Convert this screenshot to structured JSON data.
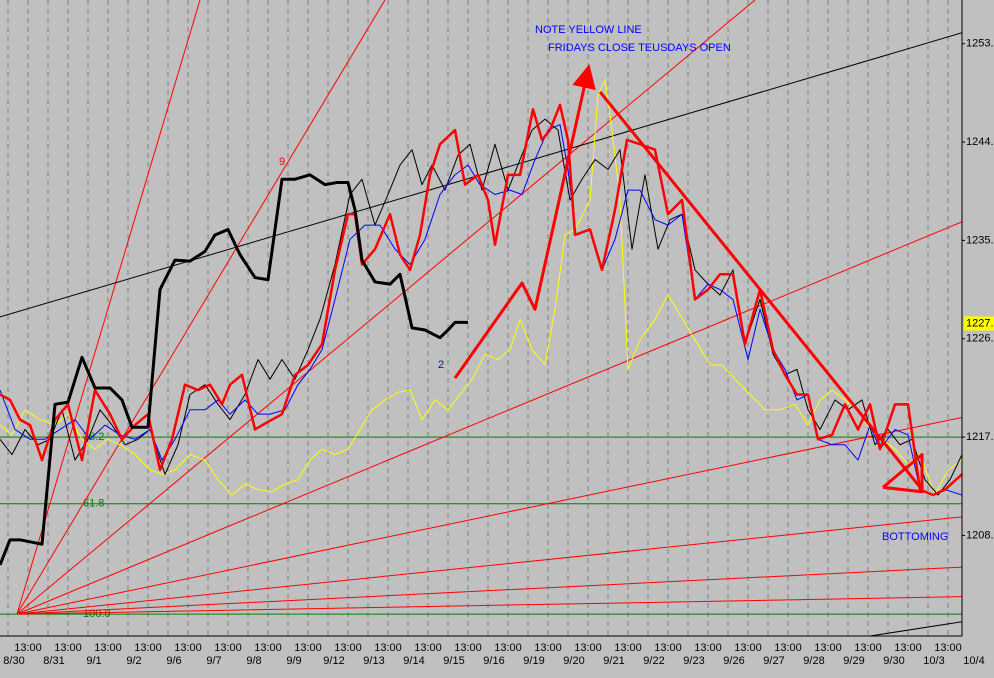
{
  "chart_data": {
    "type": "line",
    "xlim": [
      -0.4,
      47.7
    ],
    "ylim": [
      1198.8,
      1257.0
    ],
    "grid": true,
    "yticks": [
      {
        "value": 1208,
        "label": "1208."
      },
      {
        "value": 1217,
        "label": "1217."
      },
      {
        "value": 1226,
        "label": "1226."
      },
      {
        "value": 1235,
        "label": "1235."
      },
      {
        "value": 1244,
        "label": "1244."
      },
      {
        "value": 1253,
        "label": "1253."
      }
    ],
    "last_price": {
      "value": 1227.4,
      "label": "1227.",
      "color": "#ffff00"
    },
    "xticks": [
      {
        "value": 1,
        "label": "13:00"
      },
      {
        "value": 3,
        "label": "13:00"
      },
      {
        "value": 5,
        "label": "13:00"
      },
      {
        "value": 7,
        "label": "13:00"
      },
      {
        "value": 9,
        "label": "13:00"
      },
      {
        "value": 11,
        "label": "13:00"
      },
      {
        "value": 13,
        "label": "13:00"
      },
      {
        "value": 15,
        "label": "13:00"
      },
      {
        "value": 17,
        "label": "13:00"
      },
      {
        "value": 19,
        "label": "13:00"
      },
      {
        "value": 21,
        "label": "13:00"
      },
      {
        "value": 23,
        "label": "13:00"
      },
      {
        "value": 25,
        "label": "13:00"
      },
      {
        "value": 27,
        "label": "13:00"
      },
      {
        "value": 29,
        "label": "13:00"
      },
      {
        "value": 31,
        "label": "13:00"
      },
      {
        "value": 33,
        "label": "13:00"
      },
      {
        "value": 35,
        "label": "13:00"
      },
      {
        "value": 37,
        "label": "13:00"
      },
      {
        "value": 39,
        "label": "13:00"
      },
      {
        "value": 41,
        "label": "13:00"
      },
      {
        "value": 43,
        "label": "13:00"
      },
      {
        "value": 45,
        "label": "13:00"
      },
      {
        "value": 47,
        "label": "13:00"
      }
    ],
    "date_ticks": [
      {
        "value": 0,
        "label": "8/30"
      },
      {
        "value": 2,
        "label": "8/31"
      },
      {
        "value": 4,
        "label": "9/1"
      },
      {
        "value": 6,
        "label": "9/2"
      },
      {
        "value": 8,
        "label": "9/6"
      },
      {
        "value": 10,
        "label": "9/7"
      },
      {
        "value": 12,
        "label": "9/8"
      },
      {
        "value": 14,
        "label": "9/9"
      },
      {
        "value": 16,
        "label": "9/12"
      },
      {
        "value": 18,
        "label": "9/13"
      },
      {
        "value": 20,
        "label": "9/14"
      },
      {
        "value": 22,
        "label": "9/15"
      },
      {
        "value": 24,
        "label": "9/16"
      },
      {
        "value": 26,
        "label": "9/19"
      },
      {
        "value": 28,
        "label": "9/20"
      },
      {
        "value": 30,
        "label": "9/21"
      },
      {
        "value": 32,
        "label": "9/22"
      },
      {
        "value": 34,
        "label": "9/23"
      },
      {
        "value": 36,
        "label": "9/26"
      },
      {
        "value": 38,
        "label": "9/27"
      },
      {
        "value": 40,
        "label": "9/28"
      },
      {
        "value": 42,
        "label": "9/29"
      },
      {
        "value": 44,
        "label": "9/30"
      },
      {
        "value": 46,
        "label": "10/3"
      },
      {
        "value": 48,
        "label": "10/4"
      }
    ],
    "levels": [
      {
        "label": "38.2",
        "value": 1217.0,
        "color": "#008000"
      },
      {
        "label": "61.8",
        "value": 1210.9,
        "color": "#008000"
      },
      {
        "label": "100.0",
        "value": 1200.8,
        "color": "#008000"
      }
    ],
    "drawings": [
      {
        "color": "#ff0000",
        "width": 1,
        "x": [
          0.45,
          9.6
        ],
        "y": [
          1200.8,
          1257.0
        ]
      },
      {
        "color": "#ff0000",
        "width": 1,
        "x": [
          0.45,
          18.85
        ],
        "y": [
          1200.8,
          1257.0
        ]
      },
      {
        "color": "#ff0000",
        "width": 1,
        "x": [
          0.45,
          37.35
        ],
        "y": [
          1200.8,
          1257.0
        ]
      },
      {
        "color": "#ff0000",
        "width": 1,
        "x": [
          0.45,
          47.7
        ],
        "y": [
          1200.8,
          1236.7
        ]
      },
      {
        "color": "#ff0000",
        "width": 1,
        "x": [
          0.45,
          47.7
        ],
        "y": [
          1200.8,
          1218.8
        ]
      },
      {
        "color": "#ff0000",
        "width": 1,
        "x": [
          0.45,
          47.7
        ],
        "y": [
          1200.8,
          1209.7
        ]
      },
      {
        "color": "#ff0000",
        "width": 1,
        "x": [
          0.45,
          47.7
        ],
        "y": [
          1200.8,
          1205.1
        ]
      },
      {
        "color": "#ff0000",
        "width": 1,
        "x": [
          0.45,
          47.7
        ],
        "y": [
          1200.8,
          1202.4
        ]
      },
      {
        "color": "#000000",
        "width": 1,
        "x": [
          -0.4,
          47.7
        ],
        "y": [
          1228.0,
          1254.0
        ]
      },
      {
        "color": "#000000",
        "width": 1,
        "x": [
          43.1,
          47.7
        ],
        "y": [
          1198.8,
          1200.1
        ]
      }
    ],
    "series": [
      {
        "color": "#ffff00",
        "width": 1,
        "x": [
          -0.4,
          0.2,
          0.85,
          1.6,
          2.35,
          3,
          3.7,
          4.35,
          5,
          5.6,
          6.35,
          7.1,
          7.7,
          8.35,
          9.1,
          9.85,
          10.5,
          11.2,
          11.85,
          12.5,
          13.2,
          13.85,
          14.5,
          15.1,
          15.7,
          16.35,
          17,
          17.6,
          18.2,
          18.85,
          19.5,
          20.1,
          20.7,
          21.35,
          22,
          22.6,
          23.2,
          23.85,
          24.5,
          25.1,
          25.6,
          26.2,
          26.85,
          27.35,
          27.85,
          28.35,
          29.1,
          29.5,
          29.85,
          30.2,
          30.6,
          31,
          31.6,
          32.35,
          33,
          33.6,
          34.35,
          35.1,
          35.7,
          36.35,
          37.1,
          37.85,
          38.6,
          39.35,
          40,
          40.6,
          41.2,
          41.85,
          42.5,
          43.1,
          43.7,
          44.35,
          45,
          45.6,
          46.35,
          47,
          47.7
        ],
        "values": [
          1218.1,
          1217.2,
          1219.5,
          1218.6,
          1218.1,
          1219.1,
          1216.8,
          1215.9,
          1216.8,
          1216.3,
          1215.4,
          1214.0,
          1213.6,
          1214.0,
          1215.4,
          1214.9,
          1213.1,
          1211.7,
          1212.7,
          1212.2,
          1212.0,
          1212.7,
          1213.1,
          1214.9,
          1215.9,
          1215.4,
          1215.9,
          1217.7,
          1219.5,
          1220.4,
          1221.1,
          1221.3,
          1218.6,
          1220.4,
          1219.5,
          1220.9,
          1222.3,
          1224.6,
          1224.1,
          1225.0,
          1227.8,
          1225.0,
          1223.6,
          1228.7,
          1235.5,
          1236.0,
          1238.7,
          1248.3,
          1249.7,
          1245.1,
          1238.7,
          1223.2,
          1225.9,
          1227.8,
          1230.0,
          1228.2,
          1225.9,
          1223.6,
          1223.6,
          1222.3,
          1220.9,
          1219.5,
          1219.5,
          1220.0,
          1218.1,
          1220.4,
          1221.3,
          1220.4,
          1219.5,
          1217.7,
          1216.8,
          1215.9,
          1214.5,
          1215.4,
          1211.7,
          1214.0,
          1214.9
        ]
      },
      {
        "color": "#000000",
        "width": 1,
        "x": [
          -0.4,
          0.2,
          0.85,
          1.5,
          2.1,
          2.7,
          3.35,
          4,
          4.6,
          5.2,
          5.85,
          6.5,
          7.1,
          7.85,
          8.5,
          9.1,
          9.85,
          10.5,
          11.1,
          11.85,
          12.5,
          13.1,
          13.7,
          14.35,
          15,
          15.6,
          16.35,
          17.1,
          17.7,
          18.35,
          19,
          19.6,
          20.2,
          20.7,
          21.2,
          21.85,
          22.5,
          23.1,
          23.7,
          24.35,
          25,
          25.6,
          26.2,
          26.85,
          27.5,
          28.1,
          28.7,
          29.35,
          30,
          30.6,
          31.2,
          31.85,
          32.5,
          33.1,
          33.7,
          34.35,
          35,
          35.6,
          36.25,
          36.85,
          37.6,
          38.25,
          38.85,
          39.45,
          40,
          40.6,
          41.35,
          42,
          42.7,
          43.35,
          44,
          44.6,
          45.2,
          45.85,
          46.5,
          47.1,
          47.7
        ],
        "values": [
          1216.8,
          1215.4,
          1217.7,
          1216.3,
          1216.8,
          1219.5,
          1214.9,
          1216.8,
          1219.5,
          1218.1,
          1216.3,
          1216.8,
          1217.7,
          1213.6,
          1216.3,
          1220.9,
          1221.8,
          1220.0,
          1218.6,
          1220.9,
          1224.1,
          1222.3,
          1224.1,
          1222.3,
          1225.0,
          1227.8,
          1232.8,
          1239.2,
          1240.6,
          1236.4,
          1239.2,
          1241.9,
          1243.3,
          1240.1,
          1241.9,
          1239.6,
          1242.8,
          1243.8,
          1239.6,
          1243.8,
          1239.6,
          1242.4,
          1245.1,
          1246.1,
          1245.1,
          1238.7,
          1240.6,
          1242.4,
          1241.5,
          1243.3,
          1234.2,
          1241.0,
          1234.2,
          1236.9,
          1237.4,
          1232.3,
          1231.0,
          1230.0,
          1232.3,
          1225.5,
          1229.6,
          1224.6,
          1222.7,
          1223.2,
          1219.5,
          1217.7,
          1220.4,
          1219.5,
          1220.4,
          1216.3,
          1217.7,
          1216.3,
          1216.8,
          1213.1,
          1211.7,
          1213.1,
          1215.4
        ]
      },
      {
        "color": "#0000ff",
        "width": 1,
        "x": [
          -0.4,
          0.35,
          1.1,
          1.85,
          2.6,
          3.35,
          4.1,
          4.85,
          5.6,
          6.35,
          7.1,
          7.7,
          8.35,
          9.1,
          9.85,
          10.5,
          11.1,
          11.85,
          12.5,
          13.1,
          13.85,
          14.5,
          15.1,
          15.7,
          16.35,
          17.1,
          17.85,
          18.6,
          19.35,
          20.1,
          20.85,
          21.6,
          22.35,
          23,
          23.6,
          24.35,
          25.1,
          25.7,
          26.35,
          27,
          27.6,
          28,
          28.4,
          29.1,
          29.7,
          30.35,
          31,
          31.6,
          32.35,
          33,
          33.7,
          34.35,
          35,
          35.6,
          36.25,
          37,
          37.6,
          38.25,
          38.85,
          39.45,
          40,
          40.5,
          41.2,
          41.85,
          42.5,
          43.1,
          43.6,
          44.35,
          45,
          45.6,
          46.25,
          46.85,
          47.7
        ],
        "values": [
          1221.3,
          1217.7,
          1216.8,
          1216.8,
          1217.7,
          1218.6,
          1216.8,
          1218.1,
          1217.2,
          1216.8,
          1217.7,
          1214.9,
          1216.8,
          1219.5,
          1219.5,
          1220.4,
          1219.1,
          1220.4,
          1219.1,
          1219.1,
          1219.5,
          1221.8,
          1223.2,
          1225.0,
          1229.6,
          1235.1,
          1236.4,
          1236.4,
          1234.2,
          1232.8,
          1235.1,
          1239.2,
          1241.0,
          1241.9,
          1240.1,
          1239.2,
          1239.6,
          1239.2,
          1242.4,
          1245.1,
          1245.6,
          1241.5,
          1235.5,
          1236.0,
          1232.3,
          1235.1,
          1239.6,
          1239.6,
          1236.9,
          1236.4,
          1237.4,
          1229.6,
          1231.0,
          1230.5,
          1229.6,
          1224.1,
          1228.7,
          1225.0,
          1223.2,
          1220.4,
          1220.9,
          1216.8,
          1216.3,
          1216.3,
          1214.9,
          1218.1,
          1215.9,
          1217.7,
          1217.2,
          1212.2,
          1211.7,
          1212.2,
          1211.7
        ]
      },
      {
        "color": "#ff0000",
        "width": 2.5,
        "x": [
          -0.4,
          0.1,
          0.6,
          1.1,
          1.7,
          2.35,
          3,
          3.7,
          4.35,
          5.1,
          5.7,
          6.35,
          7,
          7.6,
          8.2,
          8.85,
          9.5,
          10.1,
          10.7,
          11.1,
          11.7,
          12.35,
          13,
          13.7,
          14.35,
          15,
          15.7,
          16.35,
          17,
          17.35,
          17.7,
          18.35,
          19.1,
          19.6,
          20.1,
          20.6,
          21.1,
          21.6,
          22.35,
          22.85,
          23.5,
          24,
          24.35,
          25,
          25.6,
          26.25,
          26.7,
          27.1,
          27.6,
          28,
          28.35,
          29.1,
          29.7,
          30.35,
          30.95,
          31.6,
          32.35,
          33,
          33.7,
          34.35,
          35,
          35.6,
          36.25,
          36.85,
          37.6,
          38.25,
          38.85,
          39.45,
          40,
          40.5,
          41.2,
          41.85,
          42.5,
          43.1,
          43.6,
          44.35,
          45,
          45.6,
          46.25,
          46.85,
          47.7
        ],
        "values": [
          1220.9,
          1220.4,
          1218.6,
          1218.1,
          1214.9,
          1218.6,
          1220.0,
          1214.9,
          1221.3,
          1219.1,
          1216.8,
          1218.1,
          1219.1,
          1214.0,
          1216.8,
          1221.8,
          1221.3,
          1221.8,
          1220.0,
          1221.8,
          1222.7,
          1217.7,
          1218.4,
          1219.1,
          1222.7,
          1223.6,
          1225.5,
          1232.3,
          1237.4,
          1237.4,
          1232.8,
          1234.2,
          1237.4,
          1233.7,
          1232.3,
          1235.5,
          1241.0,
          1243.8,
          1245.1,
          1240.1,
          1241.0,
          1238.7,
          1234.6,
          1241.0,
          1241.0,
          1247.0,
          1244.2,
          1245.1,
          1247.4,
          1244.2,
          1235.5,
          1236.0,
          1232.3,
          1237.8,
          1244.2,
          1243.8,
          1243.3,
          1237.4,
          1238.7,
          1229.6,
          1230.5,
          1231.9,
          1231.9,
          1225.5,
          1230.5,
          1225.0,
          1222.7,
          1220.9,
          1220.9,
          1216.8,
          1217.2,
          1220.0,
          1217.7,
          1220.0,
          1215.9,
          1220.0,
          1220.0,
          1212.2,
          1211.7,
          1212.2,
          1213.6
        ]
      },
      {
        "color": "#000000",
        "width": 3,
        "x": [
          -0.4,
          0.1,
          0.6,
          1.7,
          2.35,
          3,
          3.7,
          4.35,
          5.1,
          5.7,
          6.2,
          7,
          7.6,
          8.35,
          9.1,
          9.85,
          10.35,
          11,
          11.6,
          12.35,
          13,
          13.7,
          14.35,
          15.1,
          15.85,
          16.45,
          17,
          17.35,
          17.7,
          18.35,
          19.1,
          19.6,
          20.2,
          20.85,
          21.6,
          22,
          22.35,
          23
        ],
        "values": [
          1205.3,
          1207.6,
          1207.6,
          1207.2,
          1220.0,
          1220.2,
          1224.3,
          1221.5,
          1221.5,
          1220.4,
          1217.9,
          1217.9,
          1230.5,
          1233.2,
          1233.1,
          1234.0,
          1235.5,
          1236.0,
          1233.7,
          1231.6,
          1231.4,
          1240.6,
          1240.6,
          1241.0,
          1240.1,
          1240.3,
          1240.3,
          1237.8,
          1233.2,
          1231.2,
          1231.0,
          1231.9,
          1227.0,
          1226.8,
          1226.1,
          1226.8,
          1227.5,
          1227.5
        ]
      }
    ],
    "arrows": [
      {
        "color": "#ff0000",
        "width": 3,
        "x": [
          22.35,
          25.7,
          26.35,
          29
        ],
        "y": [
          1222.4,
          1231.1,
          1228.7,
          1250.6
        ]
      },
      {
        "color": "#ff0000",
        "width": 3,
        "x": [
          29.6,
          45.7
        ],
        "y": [
          1248.6,
          1212.2
        ]
      },
      {
        "color": "#ff0000",
        "width": 3,
        "x": [
          43.75,
          45.7,
          45.7,
          43.75
        ],
        "y": [
          1212.4,
          1215.4,
          1212.0,
          1212.4
        ]
      }
    ],
    "annotations": {
      "note": "NOTE YELLOW LINE",
      "note2": "FRIDAYS CLOSE TEUSDAYS OPEN",
      "bottoming": "BOTTOMING",
      "wave9": "9",
      "wave2": "2"
    }
  }
}
